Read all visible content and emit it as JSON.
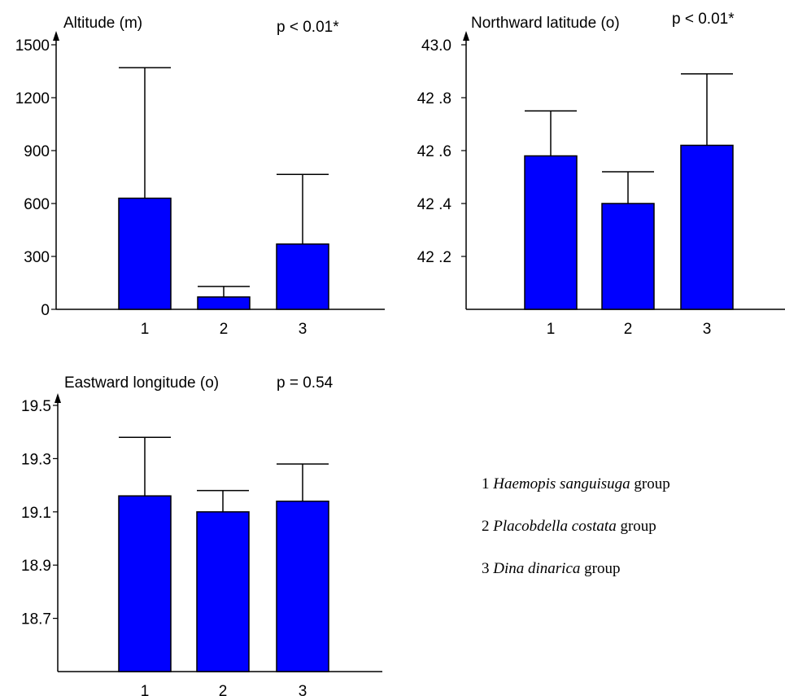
{
  "chart_data": [
    {
      "type": "bar",
      "ylabel": "Altitude (m)",
      "annotation": "p < 0.01*",
      "categories": [
        "1",
        "2",
        "3"
      ],
      "values": [
        630,
        70,
        370
      ],
      "error_upper": [
        1370,
        130,
        765
      ],
      "yticks": [
        0,
        300,
        600,
        900,
        1200,
        1500
      ],
      "ytick_labels": [
        "0",
        "300",
        "600",
        "900",
        "1200",
        "1500"
      ],
      "ylim": [
        0,
        1500
      ],
      "bar_color": "#0000ff"
    },
    {
      "type": "bar",
      "ylabel": "Northward latitude (o)",
      "annotation": "p < 0.01*",
      "categories": [
        "1",
        "2",
        "3"
      ],
      "values": [
        42.58,
        42.4,
        42.62
      ],
      "error_upper": [
        42.75,
        42.52,
        42.89
      ],
      "yticks": [
        42.2,
        42.4,
        42.6,
        42.8,
        43.0
      ],
      "ytick_labels": [
        "42 .2",
        "42 .4",
        "42 .6",
        "42 .8",
        "43.0"
      ],
      "ylim": [
        42.0,
        43.0
      ],
      "bar_color": "#0000ff"
    },
    {
      "type": "bar",
      "ylabel": "Eastward longitude (o)",
      "annotation": "p = 0.54",
      "categories": [
        "1",
        "2",
        "3"
      ],
      "values": [
        19.16,
        19.1,
        19.14
      ],
      "error_upper": [
        19.38,
        19.18,
        19.28
      ],
      "yticks": [
        18.7,
        18.9,
        19.1,
        19.3,
        19.5
      ],
      "ytick_labels": [
        "18.7",
        "18.9",
        "19.1",
        "19.3",
        "19.5"
      ],
      "ylim": [
        18.5,
        19.5
      ],
      "bar_color": "#0000ff"
    }
  ],
  "legend": [
    {
      "number": "1",
      "species": "Haemopis sanguisuga",
      "suffix": "group"
    },
    {
      "number": "2",
      "species": "Placobdella costata",
      "suffix": "group"
    },
    {
      "number": "3",
      "species": "Dina dinarica",
      "suffix": "group"
    }
  ]
}
